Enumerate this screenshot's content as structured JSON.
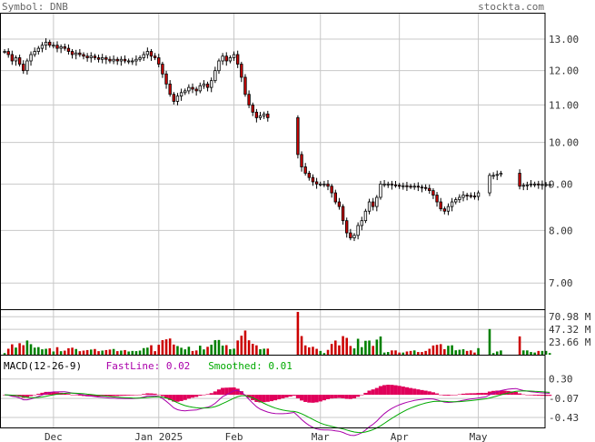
{
  "header": {
    "symbol_label": "Symbol: DNB",
    "site": "stockta.com"
  },
  "colors": {
    "up": "#ffffff",
    "down": "#cc0000",
    "volume_up": "#008000",
    "volume_down": "#cc0000",
    "macd_hist": "#e0005a",
    "fastline": "#aa00aa",
    "smoothed": "#00aa00",
    "grid": "#c8c8c8",
    "frame": "#000000"
  },
  "macd_legend": {
    "title": "MACD(12-26-9)",
    "fast_label": "FastLine: 0.02",
    "smoothed_label": "Smoothed: 0.01"
  },
  "chart_data": [
    {
      "type": "candlestick",
      "name": "price",
      "y_ticks": [
        "13.00",
        "12.00",
        "11.00",
        "10.00",
        "9.00",
        "8.00",
        "7.00"
      ],
      "y_tick_values": [
        13,
        12,
        11,
        10,
        9,
        8,
        7
      ],
      "log_scale": true,
      "ylim": [
        6.55,
        13.9
      ],
      "x_tick_labels": [
        "Dec",
        "Jan 2025",
        "Feb",
        "Mar",
        "Apr",
        "May"
      ],
      "x_tick_index": [
        13,
        41,
        61,
        84,
        105,
        126
      ],
      "n_bars": 144,
      "closes": [
        12.6,
        12.5,
        12.3,
        12.4,
        12.2,
        12.0,
        12.3,
        12.5,
        12.6,
        12.7,
        12.8,
        12.9,
        12.8,
        12.8,
        12.7,
        12.75,
        12.7,
        12.6,
        12.5,
        12.55,
        12.5,
        12.45,
        12.4,
        12.45,
        12.4,
        12.35,
        12.4,
        12.35,
        12.3,
        12.35,
        12.3,
        12.35,
        12.3,
        12.3,
        12.3,
        12.35,
        12.4,
        12.5,
        12.6,
        12.45,
        12.4,
        12.2,
        11.9,
        11.6,
        11.3,
        11.1,
        11.25,
        11.35,
        11.4,
        11.5,
        11.45,
        11.4,
        11.55,
        11.6,
        11.5,
        11.7,
        12.0,
        12.3,
        12.45,
        12.3,
        12.4,
        12.5,
        12.2,
        11.8,
        11.3,
        11.0,
        10.8,
        10.65,
        10.7,
        10.75,
        10.65,
        null,
        null,
        null,
        null,
        null,
        null,
        null,
        9.7,
        9.4,
        9.25,
        9.15,
        9.05,
        9.0,
        9.0,
        9.0,
        8.95,
        8.8,
        8.6,
        8.5,
        8.2,
        7.95,
        7.85,
        7.9,
        8.1,
        8.2,
        8.4,
        8.6,
        8.5,
        8.7,
        9.0,
        9.0,
        9.0,
        8.98,
        8.97,
        8.96,
        8.96,
        8.95,
        8.94,
        8.95,
        8.93,
        8.92,
        8.9,
        8.85,
        8.75,
        8.6,
        8.45,
        8.4,
        8.5,
        8.6,
        8.65,
        8.7,
        8.75,
        8.74,
        8.73,
        8.72,
        8.8,
        null,
        null,
        9.2,
        9.2,
        9.22,
        9.25,
        null,
        null,
        null,
        null,
        8.95,
        8.97,
        8.98,
        9.0,
        9.0,
        8.98,
        8.99,
        8.99,
        8.99
      ],
      "volume_axis": {
        "ticks": [
          "70.98 M",
          "47.32 M",
          "23.66 M"
        ],
        "tick_values": [
          70.98,
          47.32,
          23.66
        ],
        "ylim": [
          0,
          85
        ]
      },
      "macd_axis": {
        "ticks": [
          "0.30",
          "-0.07",
          "-0.43"
        ],
        "tick_values": [
          0.3,
          -0.07,
          -0.43
        ],
        "ylim": [
          -0.62,
          0.45
        ]
      }
    }
  ]
}
